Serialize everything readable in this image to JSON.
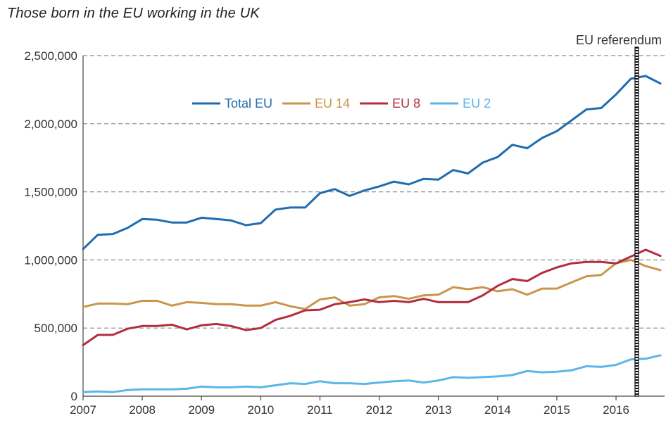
{
  "chart_data": {
    "type": "line",
    "title": "Those born in the EU working in the UK",
    "xlabel": "",
    "ylabel": "",
    "xlim": [
      2007.0,
      2016.82
    ],
    "ylim": [
      0,
      2500000
    ],
    "grid": "horizontal-dashed",
    "legend": "top-center",
    "x_ticks": [
      "2007",
      "2008",
      "2009",
      "2010",
      "2011",
      "2012",
      "2013",
      "2014",
      "2015",
      "2016"
    ],
    "y_ticks": [
      "0",
      "500,000",
      "1,000,000",
      "1,500,000",
      "2,000,000",
      "2,500,000"
    ],
    "annotation": {
      "label": "EU referendum",
      "x": 2016.35
    },
    "x": [
      2007.0,
      2007.25,
      2007.5,
      2007.75,
      2008.0,
      2008.25,
      2008.5,
      2008.75,
      2009.0,
      2009.25,
      2009.5,
      2009.75,
      2010.0,
      2010.25,
      2010.5,
      2010.75,
      2011.0,
      2011.25,
      2011.5,
      2011.75,
      2012.0,
      2012.25,
      2012.5,
      2012.75,
      2013.0,
      2013.25,
      2013.5,
      2013.75,
      2014.0,
      2014.25,
      2014.5,
      2014.75,
      2015.0,
      2015.25,
      2015.5,
      2015.75,
      2016.0,
      2016.25,
      2016.5,
      2016.75
    ],
    "series": [
      {
        "name": "Total EU",
        "color": "#1f6cb0",
        "values": [
          1080000,
          1185000,
          1190000,
          1235000,
          1300000,
          1295000,
          1275000,
          1275000,
          1310000,
          1300000,
          1290000,
          1255000,
          1270000,
          1370000,
          1385000,
          1385000,
          1490000,
          1520000,
          1470000,
          1510000,
          1540000,
          1575000,
          1555000,
          1595000,
          1590000,
          1660000,
          1635000,
          1715000,
          1755000,
          1845000,
          1820000,
          1895000,
          1945000,
          2025000,
          2105000,
          2115000,
          2215000,
          2330000,
          2350000,
          2295000
        ]
      },
      {
        "name": "EU 14",
        "color": "#c9964a",
        "values": [
          655000,
          680000,
          680000,
          675000,
          700000,
          700000,
          665000,
          690000,
          685000,
          675000,
          675000,
          665000,
          665000,
          690000,
          660000,
          640000,
          710000,
          725000,
          665000,
          675000,
          725000,
          735000,
          715000,
          740000,
          745000,
          800000,
          785000,
          800000,
          770000,
          785000,
          745000,
          790000,
          790000,
          835000,
          880000,
          890000,
          975000,
          1000000,
          955000,
          925000
        ]
      },
      {
        "name": "EU 8",
        "color": "#b22e3e",
        "values": [
          375000,
          450000,
          450000,
          495000,
          515000,
          515000,
          525000,
          490000,
          520000,
          530000,
          515000,
          485000,
          500000,
          560000,
          590000,
          630000,
          635000,
          675000,
          690000,
          710000,
          690000,
          700000,
          690000,
          715000,
          690000,
          690000,
          690000,
          740000,
          810000,
          860000,
          845000,
          905000,
          945000,
          975000,
          985000,
          985000,
          975000,
          1025000,
          1075000,
          1030000
        ]
      },
      {
        "name": "EU 2",
        "color": "#5bb6ea",
        "values": [
          30000,
          35000,
          30000,
          45000,
          50000,
          50000,
          50000,
          55000,
          70000,
          65000,
          65000,
          70000,
          65000,
          80000,
          95000,
          90000,
          110000,
          95000,
          95000,
          90000,
          100000,
          110000,
          115000,
          100000,
          115000,
          140000,
          135000,
          140000,
          145000,
          155000,
          185000,
          175000,
          180000,
          190000,
          220000,
          215000,
          230000,
          270000,
          275000,
          300000
        ]
      }
    ]
  }
}
